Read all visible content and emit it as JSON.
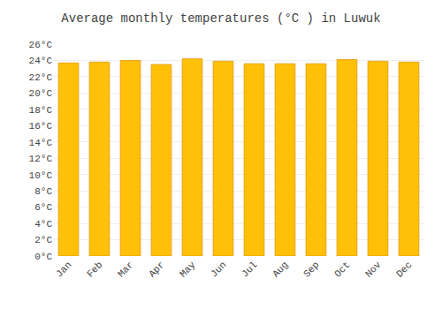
{
  "chart_data": {
    "type": "bar",
    "title": "Average monthly temperatures (°C ) in Luwuk",
    "categories": [
      "Jan",
      "Feb",
      "Mar",
      "Apr",
      "May",
      "Jun",
      "Jul",
      "Aug",
      "Sep",
      "Oct",
      "Nov",
      "Dec"
    ],
    "values": [
      23.7,
      23.8,
      24.0,
      23.5,
      24.2,
      23.9,
      23.6,
      23.6,
      23.6,
      24.1,
      23.9,
      23.8
    ],
    "color": "#FFC107",
    "ylim": [
      0,
      26
    ],
    "yticks": [
      {
        "value": 0,
        "label": "0°C"
      },
      {
        "value": 2,
        "label": "2°C"
      },
      {
        "value": 4,
        "label": "4°C"
      },
      {
        "value": 6,
        "label": "6°C"
      },
      {
        "value": 8,
        "label": "8°C"
      },
      {
        "value": 10,
        "label": "10°C"
      },
      {
        "value": 12,
        "label": "12°C"
      },
      {
        "value": 14,
        "label": "14°C"
      },
      {
        "value": 16,
        "label": "16°C"
      },
      {
        "value": 18,
        "label": "18°C"
      },
      {
        "value": 20,
        "label": "20°C"
      },
      {
        "value": 22,
        "label": "22°C"
      },
      {
        "value": 24,
        "label": "24°C"
      },
      {
        "value": 26,
        "label": "26°C"
      }
    ],
    "grid": true
  }
}
